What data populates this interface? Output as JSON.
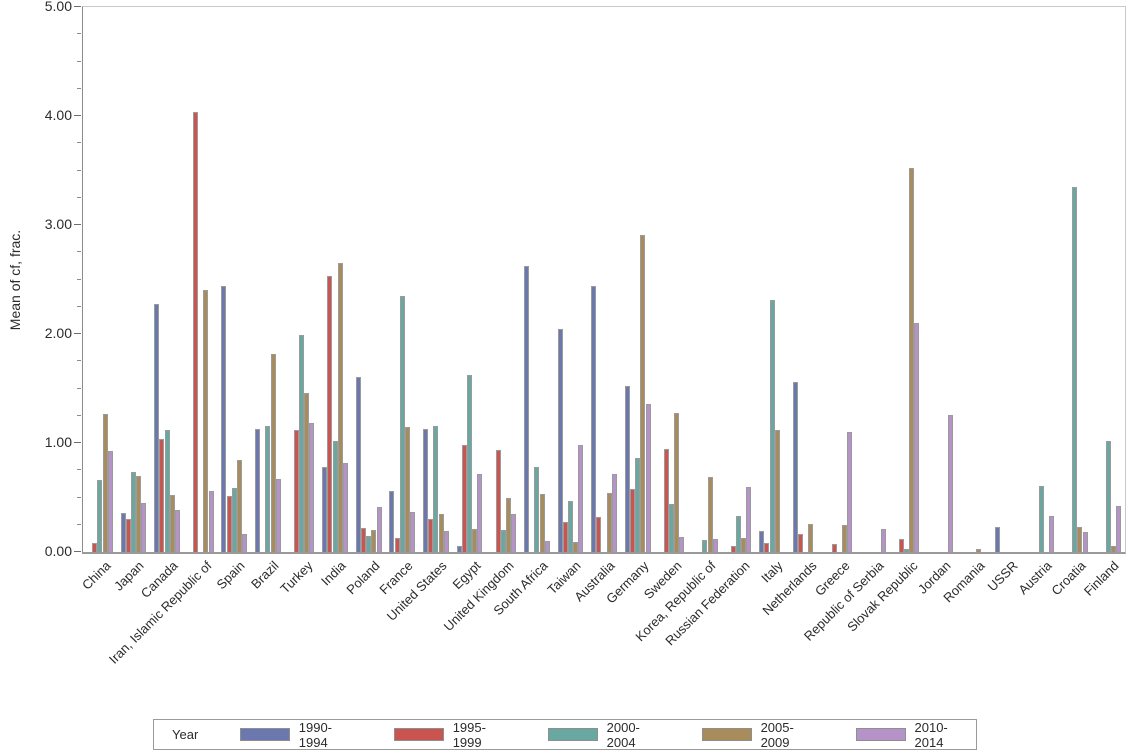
{
  "chart_data": {
    "type": "bar",
    "title": "",
    "xlabel": "",
    "ylabel": "Mean of cf, frac.",
    "ylim": [
      0,
      5
    ],
    "ytick_labels": [
      "0.00",
      "1.00",
      "2.00",
      "3.00",
      "4.00",
      "5.00"
    ],
    "minor_tick_step": 0.25,
    "grid": "off",
    "legend_title": "Year",
    "legend_position": "bottom",
    "categories": [
      "China",
      "Japan",
      "Canada",
      "Iran, Islamic Republic of",
      "Spain",
      "Brazil",
      "Turkey",
      "India",
      "Poland",
      "France",
      "United States",
      "Egypt",
      "United Kingdom",
      "South Africa",
      "Taiwan",
      "Australia",
      "Germany",
      "Sweden",
      "Korea, Republic of",
      "Russian Federation",
      "Italy",
      "Netherlands",
      "Greece",
      "Republic of Serbia",
      "Slovak Republic",
      "Jordan",
      "Romania",
      "USSR",
      "Austria",
      "Croatia",
      "Finland"
    ],
    "series": [
      {
        "name": "1990-1994",
        "color": "#6A78AF",
        "values": [
          null,
          0.36,
          2.28,
          null,
          2.44,
          1.13,
          null,
          0.78,
          1.61,
          0.56,
          1.13,
          0.06,
          null,
          2.62,
          2.05,
          2.44,
          1.52,
          null,
          null,
          null,
          0.19,
          1.56,
          null,
          null,
          null,
          null,
          null,
          0.23,
          null,
          null,
          null
        ]
      },
      {
        "name": "1995-1999",
        "color": "#CA5450",
        "values": [
          0.08,
          0.3,
          1.04,
          4.04,
          0.51,
          null,
          1.12,
          2.53,
          0.22,
          0.13,
          0.3,
          0.98,
          0.94,
          null,
          0.28,
          0.32,
          0.58,
          0.95,
          null,
          0.06,
          0.08,
          0.17,
          0.07,
          null,
          0.12,
          null,
          null,
          null,
          null,
          null,
          null
        ]
      },
      {
        "name": "2000-2004",
        "color": "#69A8A0",
        "values": [
          0.66,
          0.73,
          1.12,
          null,
          0.59,
          1.16,
          1.99,
          1.02,
          0.15,
          2.35,
          1.16,
          1.62,
          0.2,
          0.78,
          0.47,
          null,
          0.86,
          0.44,
          0.11,
          0.33,
          2.31,
          null,
          null,
          null,
          0.03,
          null,
          null,
          null,
          0.61,
          3.35,
          1.02
        ]
      },
      {
        "name": "2005-2009",
        "color": "#A98C5C",
        "values": [
          1.27,
          0.7,
          0.52,
          2.4,
          0.84,
          1.82,
          1.46,
          2.65,
          0.2,
          1.15,
          0.35,
          0.21,
          0.5,
          0.53,
          0.09,
          0.54,
          2.91,
          1.28,
          0.69,
          0.13,
          1.12,
          0.26,
          0.25,
          null,
          3.52,
          null,
          0.03,
          null,
          null,
          0.23,
          0.06
        ]
      },
      {
        "name": "2010-2014",
        "color": "#B592C8",
        "values": [
          0.93,
          0.45,
          0.39,
          0.56,
          0.17,
          0.67,
          1.18,
          0.82,
          0.41,
          0.37,
          0.19,
          0.72,
          0.35,
          0.1,
          0.98,
          0.72,
          1.36,
          0.14,
          0.12,
          0.6,
          null,
          null,
          1.1,
          0.21,
          2.1,
          1.26,
          null,
          null,
          0.33,
          0.18,
          0.42
        ]
      }
    ]
  }
}
